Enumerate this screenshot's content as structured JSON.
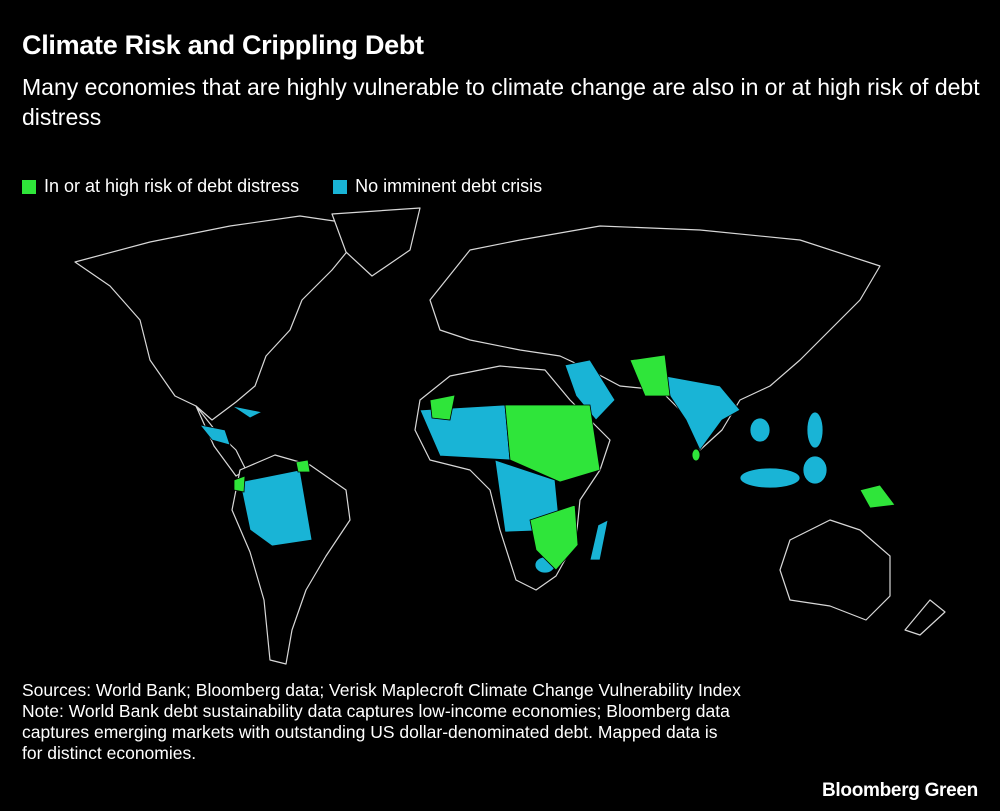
{
  "header": {
    "title": "Climate Risk and Crippling Debt",
    "subtitle": "Many economies that are highly vulnerable to climate change are also in or at high risk of debt distress"
  },
  "legend": [
    {
      "name": "In or at high risk of debt distress",
      "color": "#2fe53a"
    },
    {
      "name": "No imminent debt crisis",
      "color": "#19b4d6"
    }
  ],
  "footer": {
    "sources": "Sources: World Bank; Bloomberg data; Verisk Maplecroft Climate Change Vulnerability Index",
    "note": "Note: World Bank debt sustainability data captures low-income economies; Bloomberg data captures emerging markets with outstanding US dollar-denominated debt. Mapped data is for distinct economies.",
    "brand": "Bloomberg Green"
  }
}
